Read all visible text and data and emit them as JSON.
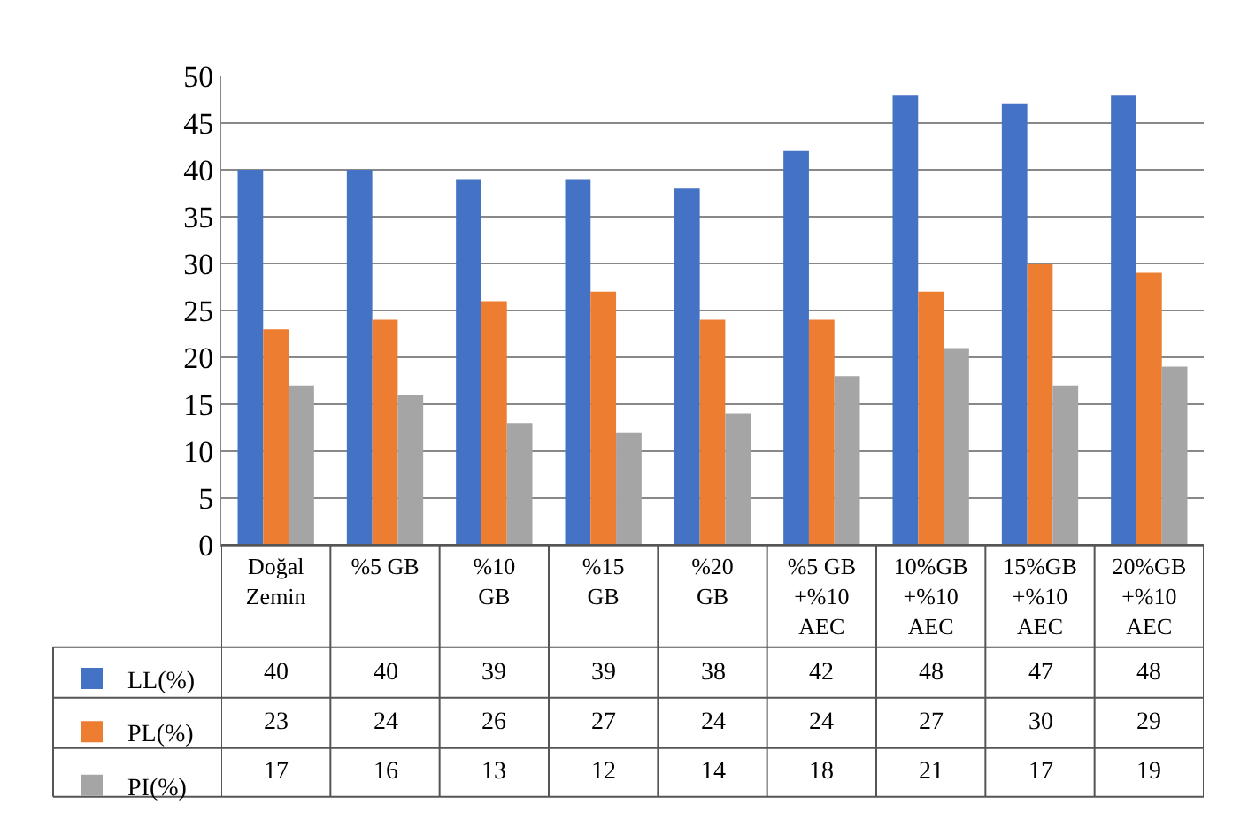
{
  "chart_data": {
    "type": "bar",
    "categories": [
      "Doğal Zemin",
      "%5 GB",
      "%10 GB",
      "%15 GB",
      "%20 GB",
      "%5 GB +%10 AEC",
      "10%GB +%10 AEC",
      "15%GB +%10 AEC",
      "20%GB +%10 AEC"
    ],
    "series": [
      {
        "name": "LL(%)",
        "color": "#4472c4",
        "values": [
          40,
          40,
          39,
          39,
          38,
          42,
          48,
          47,
          48
        ]
      },
      {
        "name": "PL(%)",
        "color": "#ed7d31",
        "values": [
          23,
          24,
          26,
          27,
          24,
          24,
          27,
          30,
          29
        ]
      },
      {
        "name": "PI(%)",
        "color": "#a5a5a5",
        "values": [
          17,
          16,
          13,
          12,
          14,
          18,
          21,
          17,
          19
        ]
      }
    ],
    "ylim": [
      0,
      50
    ],
    "yticks": [
      0,
      5,
      10,
      15,
      20,
      25,
      30,
      35,
      40,
      45,
      50
    ],
    "grid": "y",
    "legend": "bottom left",
    "data_labels": true
  }
}
